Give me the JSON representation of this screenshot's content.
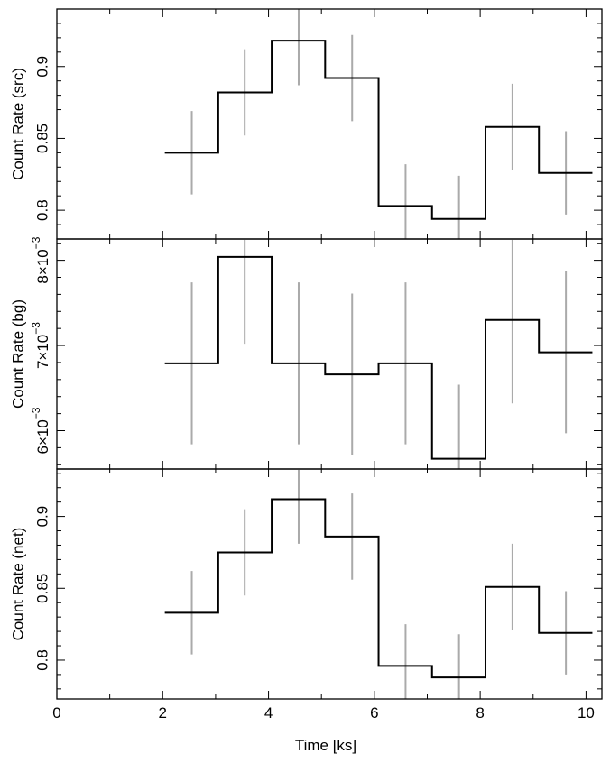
{
  "chart_data": [
    {
      "type": "line",
      "step": true,
      "ylabel": "Count Rate (src)",
      "xlim": [
        0,
        10.3
      ],
      "ylim": [
        0.78,
        0.94
      ],
      "yticks_major": [
        0.8,
        0.85,
        0.9
      ],
      "ytick_labels": [
        "0.8",
        "0.85",
        "0.9"
      ],
      "yticks_minor_step": 0.01,
      "bin_edges": [
        2.04,
        3.05,
        4.06,
        5.07,
        6.08,
        7.09,
        8.1,
        9.11,
        10.12
      ],
      "x": [
        2.55,
        3.55,
        4.57,
        5.58,
        6.59,
        7.6,
        8.61,
        9.62
      ],
      "values": [
        0.84,
        0.882,
        0.918,
        0.892,
        0.803,
        0.794,
        0.858,
        0.826
      ],
      "error": [
        0.029,
        0.03,
        0.031,
        0.03,
        0.029,
        0.03,
        0.03,
        0.029
      ]
    },
    {
      "type": "line",
      "step": true,
      "ylabel": "Count Rate (bg)",
      "xlim": [
        0,
        10.3
      ],
      "ylim": [
        0.00555,
        0.00825
      ],
      "yticks_major": [
        0.006,
        0.007,
        0.008
      ],
      "ytick_labels": [
        {
          "mantissa": "6",
          "base": "×10",
          "exponent": "−3"
        },
        {
          "mantissa": "7",
          "base": "×10",
          "exponent": "−3"
        },
        {
          "mantissa": "8",
          "base": "×10",
          "exponent": "−3"
        }
      ],
      "yticks_minor_step": 0.0002,
      "bin_edges": [
        2.04,
        3.05,
        4.06,
        5.07,
        6.08,
        7.09,
        8.1,
        9.11,
        10.12
      ],
      "x": [
        2.55,
        3.55,
        4.57,
        5.58,
        6.59,
        7.6,
        8.61,
        9.62
      ],
      "values": [
        0.00679,
        0.00804,
        0.00679,
        0.00666,
        0.00679,
        0.00567,
        0.0073,
        0.00692
      ],
      "error": [
        0.00095,
        0.00102,
        0.00095,
        0.00095,
        0.00095,
        0.00087,
        0.00098,
        0.00095
      ]
    },
    {
      "type": "line",
      "step": true,
      "ylabel": "Count Rate (net)",
      "xlabel": "Time [ks]",
      "xlim": [
        0,
        10.3
      ],
      "xticks_major": [
        0,
        2,
        4,
        6,
        8,
        10
      ],
      "xtick_labels": [
        "0",
        "2",
        "4",
        "6",
        "8",
        "10"
      ],
      "ylim": [
        0.773,
        0.933
      ],
      "yticks_major": [
        0.8,
        0.85,
        0.9
      ],
      "ytick_labels": [
        "0.8",
        "0.85",
        "0.9"
      ],
      "yticks_minor_step": 0.01,
      "bin_edges": [
        2.04,
        3.05,
        4.06,
        5.07,
        6.08,
        7.09,
        8.1,
        9.11,
        10.12
      ],
      "x": [
        2.55,
        3.55,
        4.57,
        5.58,
        6.59,
        7.6,
        8.61,
        9.62
      ],
      "values": [
        0.833,
        0.875,
        0.912,
        0.886,
        0.796,
        0.788,
        0.851,
        0.819
      ],
      "error": [
        0.029,
        0.03,
        0.031,
        0.03,
        0.029,
        0.03,
        0.03,
        0.029
      ]
    }
  ],
  "colors": {
    "step_line": "#000000",
    "error_bar": "#aaaaaa",
    "frame": "#000000"
  }
}
